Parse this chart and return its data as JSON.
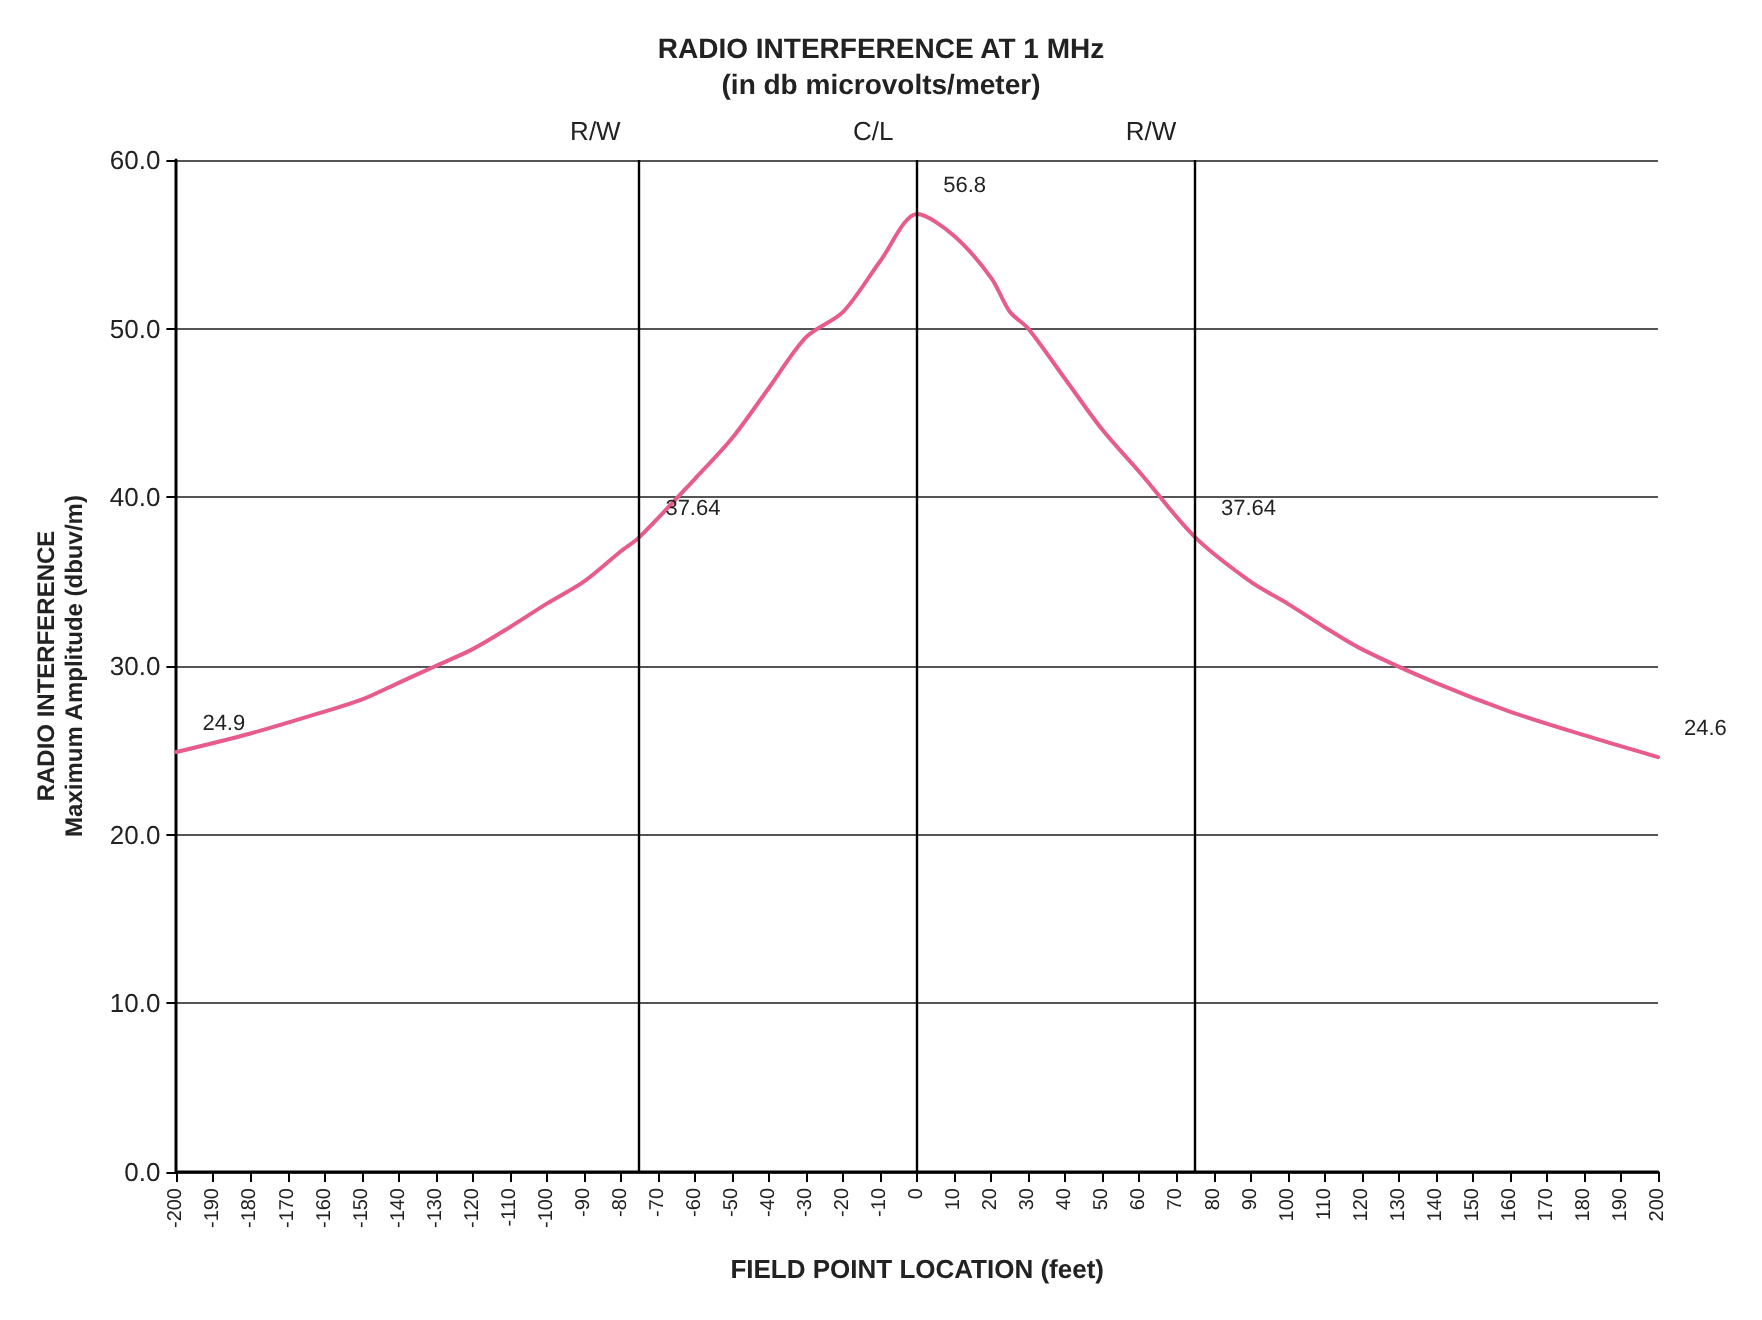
{
  "chart_data": {
    "type": "line",
    "title": "RADIO INTERFERENCE AT 1 MHz",
    "subtitle": "(in db microvolts/meter)",
    "xlabel": "FIELD POINT LOCATION (feet)",
    "ylabel": "RADIO INTERFERENCE\nMaximum Amplitude (dbuv/m)",
    "x": [
      -200,
      -180,
      -160,
      -150,
      -140,
      -130,
      -120,
      -110,
      -100,
      -90,
      -80,
      -75,
      -60,
      -50,
      -40,
      -30,
      -20,
      -10,
      0,
      10,
      20,
      25,
      30,
      40,
      50,
      60,
      75,
      90,
      100,
      110,
      120,
      140,
      160,
      180,
      200
    ],
    "series": [
      {
        "color": "#e75b8d",
        "values": [
          24.9,
          26,
          27.3,
          28,
          29,
          30,
          31,
          32.3,
          33.7,
          35,
          36.8,
          37.64,
          41.1,
          43.5,
          46.5,
          49.5,
          51,
          54,
          56.8,
          55.5,
          53,
          51,
          50,
          47,
          44,
          41.5,
          37.64,
          35,
          33.7,
          32.3,
          31,
          29,
          27.3,
          25.9,
          24.6
        ],
        "value_labels": [
          "24.9",
          null,
          null,
          null,
          null,
          null,
          null,
          null,
          null,
          null,
          null,
          "37.64",
          null,
          null,
          null,
          null,
          null,
          null,
          "56.8",
          null,
          null,
          null,
          null,
          null,
          null,
          null,
          "37.64",
          null,
          null,
          null,
          null,
          null,
          null,
          null,
          "24.6"
        ]
      }
    ],
    "ref_lines": [
      {
        "axis": "x",
        "value": -75,
        "label": "R/W",
        "color": "#000000"
      },
      {
        "axis": "x",
        "value": 0,
        "label": "C/L",
        "color": "#000000"
      },
      {
        "axis": "x",
        "value": 75,
        "label": "R/W",
        "color": "#000000"
      }
    ],
    "xlim": [
      -200,
      200
    ],
    "xticks": [
      -200,
      -190,
      -180,
      -170,
      -160,
      -150,
      -140,
      -130,
      -120,
      -110,
      -100,
      -90,
      -80,
      -70,
      -60,
      -50,
      -40,
      -30,
      -20,
      -10,
      0,
      10,
      20,
      30,
      40,
      50,
      60,
      70,
      80,
      90,
      100,
      110,
      120,
      130,
      140,
      150,
      160,
      170,
      180,
      190,
      200
    ],
    "ylim": [
      0,
      60
    ],
    "yticks": [
      {
        "value": 0,
        "label": "0.0"
      },
      {
        "value": 10,
        "label": "10.0"
      },
      {
        "value": 20,
        "label": "20.0"
      },
      {
        "value": 30,
        "label": "30.0"
      },
      {
        "value": 40,
        "label": "40.0"
      },
      {
        "value": 50,
        "label": "50.0"
      },
      {
        "value": 60,
        "label": "60.0"
      }
    ],
    "grid": "y",
    "marker": "none",
    "line_style": "solid"
  }
}
